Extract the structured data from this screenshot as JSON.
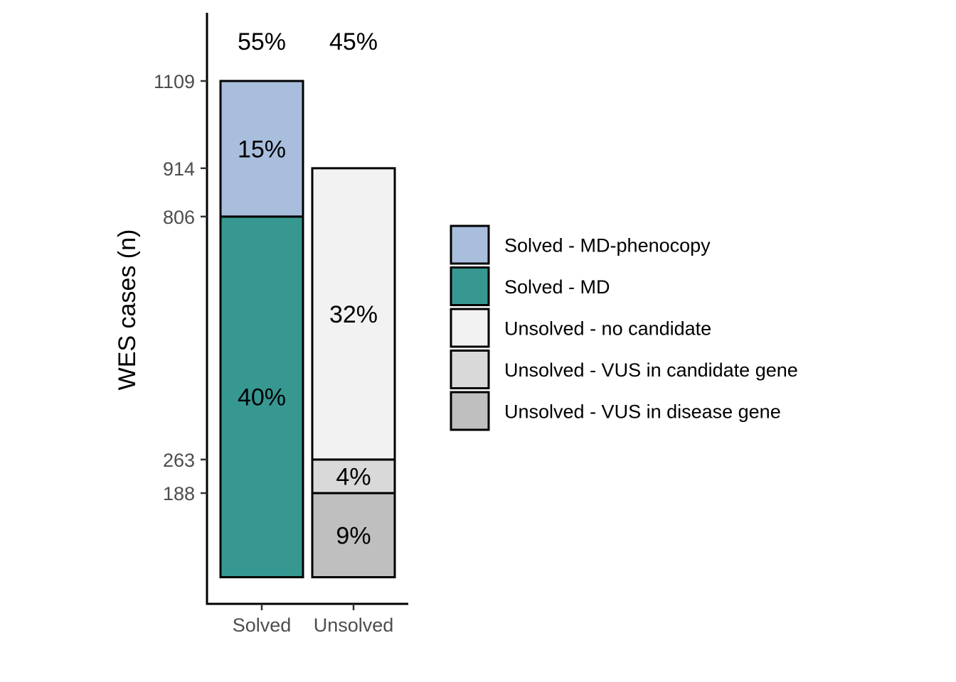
{
  "chart_data": {
    "type": "bar",
    "stacked": true,
    "categories": [
      "Solved",
      "Unsolved"
    ],
    "ylabel": "WES cases (n)",
    "xlabel": "",
    "y_ticks": [
      188,
      263,
      806,
      914,
      1109
    ],
    "ylim": [
      -60,
      1160
    ],
    "grid": false,
    "legend_position": "right",
    "totals": [
      {
        "category": "Solved",
        "label": "55%"
      },
      {
        "category": "Unsolved",
        "label": "45%"
      }
    ],
    "series": [
      {
        "name": "Solved - MD-phenocopy",
        "color": "#A9BEDD",
        "values": [
          303,
          0
        ],
        "labels": [
          "15%",
          ""
        ]
      },
      {
        "name": "Solved - MD",
        "color": "#379892",
        "values": [
          806,
          0
        ],
        "labels": [
          "40%",
          ""
        ]
      },
      {
        "name": "Unsolved - no candidate",
        "color": "#F2F2F2",
        "values": [
          0,
          651
        ],
        "labels": [
          "",
          "32%"
        ]
      },
      {
        "name": "Unsolved - VUS in candidate gene",
        "color": "#D9D9D9",
        "values": [
          0,
          75
        ],
        "labels": [
          "",
          "4%"
        ]
      },
      {
        "name": "Unsolved - VUS in disease gene",
        "color": "#BFBFBF",
        "values": [
          0,
          188
        ],
        "labels": [
          "",
          "9%"
        ]
      }
    ],
    "stack_order_bottom_to_top": [
      [
        "Solved - MD",
        "Solved - MD-phenocopy"
      ],
      [
        "Unsolved - VUS in disease gene",
        "Unsolved - VUS in candidate gene",
        "Unsolved - no candidate"
      ]
    ]
  }
}
